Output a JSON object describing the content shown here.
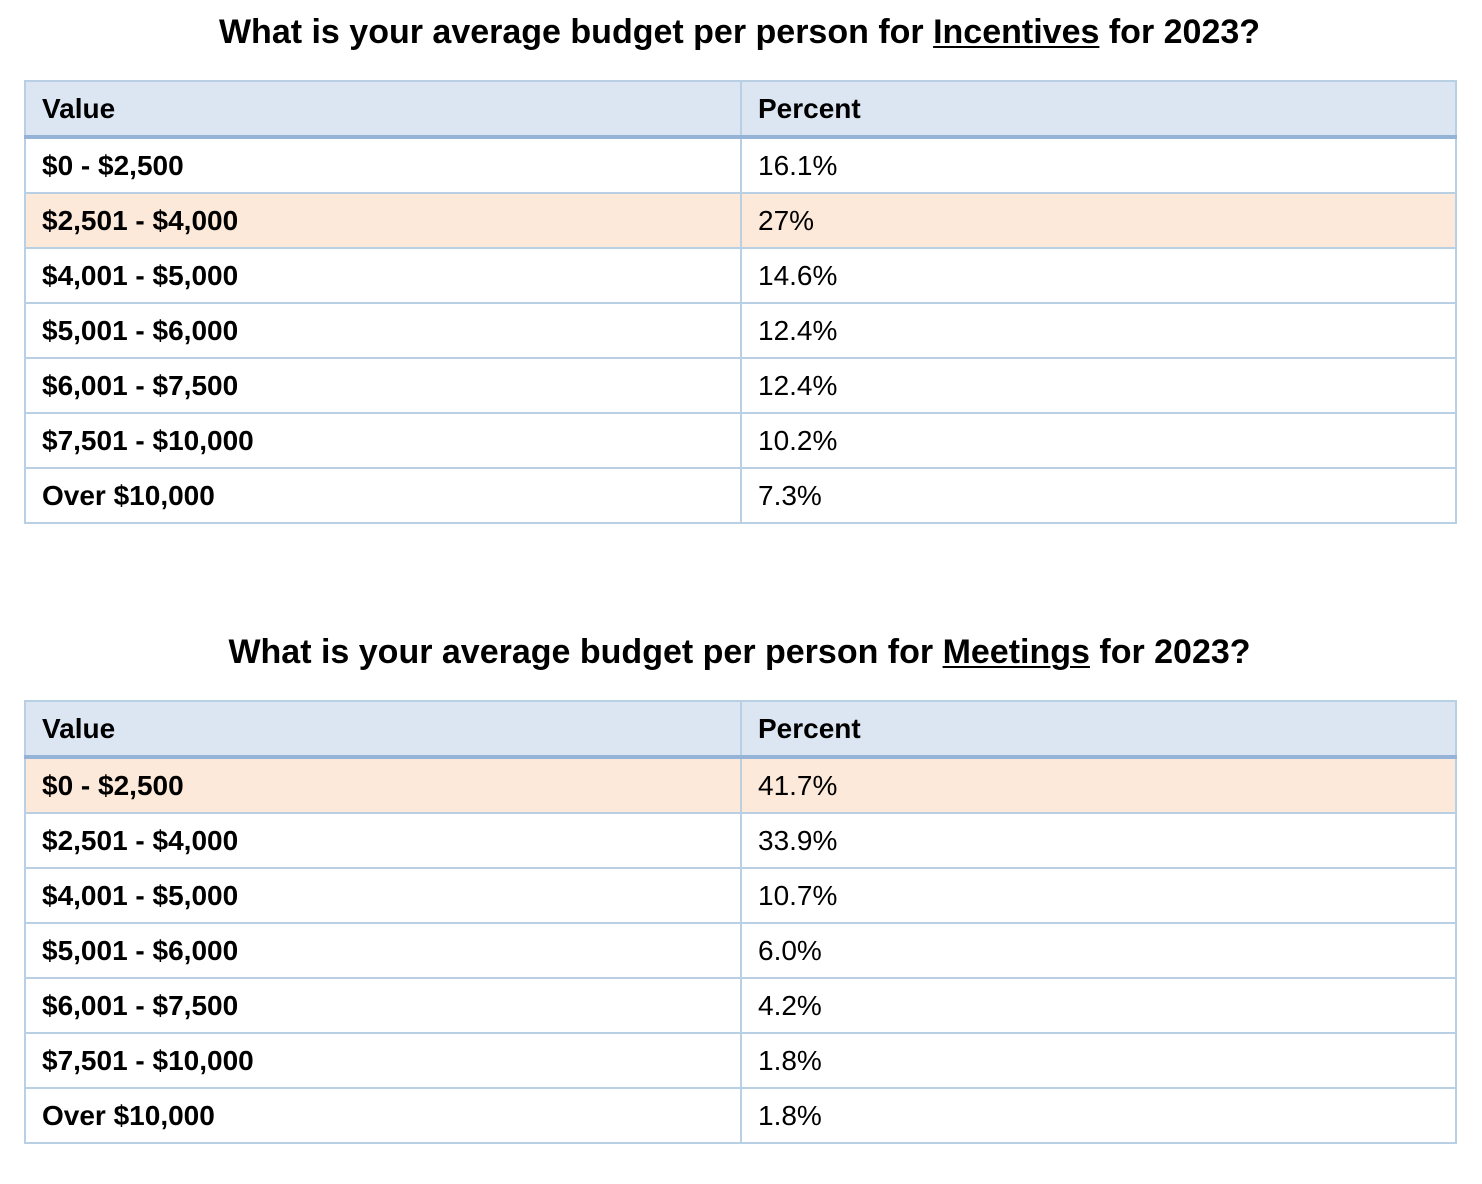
{
  "sections": [
    {
      "title_before": "What is your average budget per person for ",
      "title_underlined": "Incentives",
      "title_after": " for 2023?",
      "headers": [
        "Value",
        "Percent"
      ],
      "rows": [
        {
          "value": "$0 - $2,500",
          "percent": "16.1%",
          "highlight": false
        },
        {
          "value": "$2,501 - $4,000",
          "percent": "27%",
          "highlight": true
        },
        {
          "value": "$4,001 - $5,000",
          "percent": "14.6%",
          "highlight": false
        },
        {
          "value": "$5,001 - $6,000",
          "percent": "12.4%",
          "highlight": false
        },
        {
          "value": "$6,001 - $7,500",
          "percent": "12.4%",
          "highlight": false
        },
        {
          "value": "$7,501 - $10,000",
          "percent": "10.2%",
          "highlight": false
        },
        {
          "value": "Over $10,000",
          "percent": "7.3%",
          "highlight": false
        }
      ]
    },
    {
      "title_before": "What is your average budget per person for ",
      "title_underlined": "Meetings",
      "title_after": " for 2023?",
      "headers": [
        "Value",
        "Percent"
      ],
      "rows": [
        {
          "value": "$0 - $2,500",
          "percent": "41.7%",
          "highlight": true
        },
        {
          "value": "$2,501 - $4,000",
          "percent": "33.9%",
          "highlight": false
        },
        {
          "value": "$4,001 - $5,000",
          "percent": "10.7%",
          "highlight": false
        },
        {
          "value": "$5,001 - $6,000",
          "percent": "6.0%",
          "highlight": false
        },
        {
          "value": "$6,001 - $7,500",
          "percent": "4.2%",
          "highlight": false
        },
        {
          "value": "$7,501 - $10,000",
          "percent": "1.8%",
          "highlight": false
        },
        {
          "value": "Over $10,000",
          "percent": "1.8%",
          "highlight": false
        }
      ]
    }
  ],
  "colors": {
    "header_bg": "#dce6f2",
    "highlight_bg": "#fde9d9",
    "border": "#b8cfe4",
    "header_rule": "#95b3d7"
  }
}
